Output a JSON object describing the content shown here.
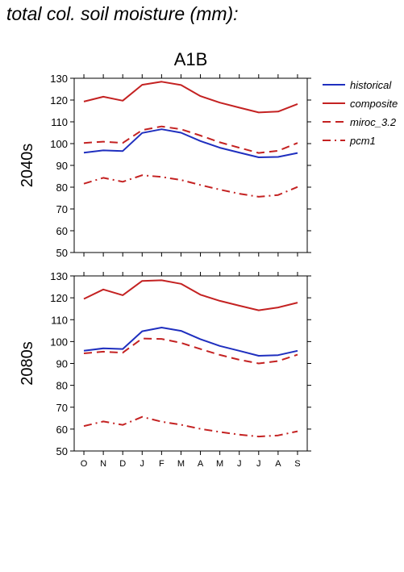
{
  "title": "total col. soil moisture (mm):",
  "chart_data": {
    "type": "line",
    "scenario": "A1B",
    "categories": [
      "O",
      "N",
      "D",
      "J",
      "F",
      "M",
      "A",
      "M",
      "J",
      "J",
      "A",
      "S"
    ],
    "ylim": [
      50,
      130
    ],
    "yticks": [
      "50",
      "60",
      "70",
      "80",
      "90",
      "100",
      "110",
      "120",
      "130"
    ],
    "legend": {
      "position": "right",
      "entries": [
        {
          "name": "historical",
          "color": "#1f2fbf",
          "style": "solid"
        },
        {
          "name": "composite",
          "color": "#c42222",
          "style": "solid"
        },
        {
          "name": "miroc_3.2",
          "color": "#c42222",
          "style": "dashed"
        },
        {
          "name": "pcm1",
          "color": "#c42222",
          "style": "dashdot"
        }
      ]
    },
    "panels": [
      {
        "label": "2040s",
        "series": [
          {
            "name": "historical",
            "values": [
              95.8,
              96.9,
              96.6,
              104.9,
              106.6,
              105.0,
              101.2,
              98.1,
              95.9,
              93.7,
              93.9,
              95.7
            ]
          },
          {
            "name": "composite",
            "values": [
              119.3,
              121.5,
              119.7,
              127.0,
              128.4,
              126.9,
              121.8,
              118.8,
              116.5,
              114.3,
              114.7,
              118.2
            ]
          },
          {
            "name": "miroc_3.2",
            "values": [
              100.3,
              100.9,
              100.3,
              106.2,
              107.9,
              106.6,
              103.7,
              100.6,
              98.1,
              95.7,
              96.7,
              100.3
            ]
          },
          {
            "name": "pcm1",
            "values": [
              81.6,
              84.3,
              82.5,
              85.5,
              84.7,
              83.3,
              81.0,
              78.9,
              77.0,
              75.6,
              76.4,
              80.1
            ]
          }
        ]
      },
      {
        "label": "2080s",
        "series": [
          {
            "name": "historical",
            "values": [
              95.8,
              96.9,
              96.6,
              104.7,
              106.4,
              104.9,
              101.1,
              98.0,
              95.8,
              93.5,
              93.8,
              95.8
            ]
          },
          {
            "name": "composite",
            "values": [
              119.5,
              123.8,
              121.2,
              127.7,
              128.0,
              126.4,
              121.4,
              118.6,
              116.4,
              114.3,
              115.6,
              117.8
            ]
          },
          {
            "name": "miroc_3.2",
            "values": [
              94.6,
              95.4,
              94.9,
              101.4,
              101.2,
              99.4,
              96.6,
              93.9,
              91.7,
              90.0,
              91.1,
              94.0
            ]
          },
          {
            "name": "pcm1",
            "values": [
              61.4,
              63.5,
              61.9,
              65.6,
              63.4,
              62.0,
              60.1,
              58.7,
              57.5,
              56.6,
              57.1,
              59.0
            ]
          }
        ]
      }
    ]
  }
}
